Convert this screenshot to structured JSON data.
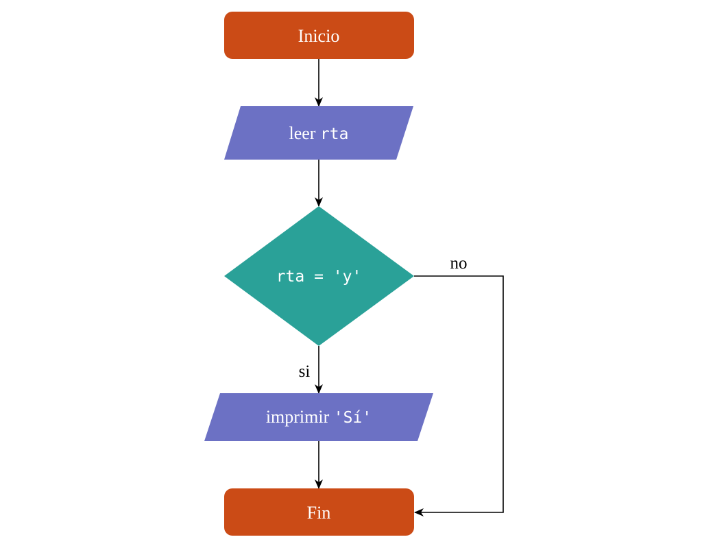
{
  "colors": {
    "terminal": "#cb4b16",
    "io": "#6c71c4",
    "decision": "#2aa198",
    "text_on_shape": "#ffffff",
    "edge": "#000000"
  },
  "nodes": {
    "start": {
      "shape": "terminal",
      "label": "Inicio"
    },
    "read": {
      "shape": "io",
      "label_text": "leer ",
      "label_code": "rta"
    },
    "condition": {
      "shape": "decision",
      "label_code": "rta = 'y'"
    },
    "print": {
      "shape": "io",
      "label_text": "imprimir ",
      "label_code": "'Sí'"
    },
    "end": {
      "shape": "terminal",
      "label": "Fin"
    }
  },
  "edges": {
    "yes_label": "si",
    "no_label": "no"
  }
}
